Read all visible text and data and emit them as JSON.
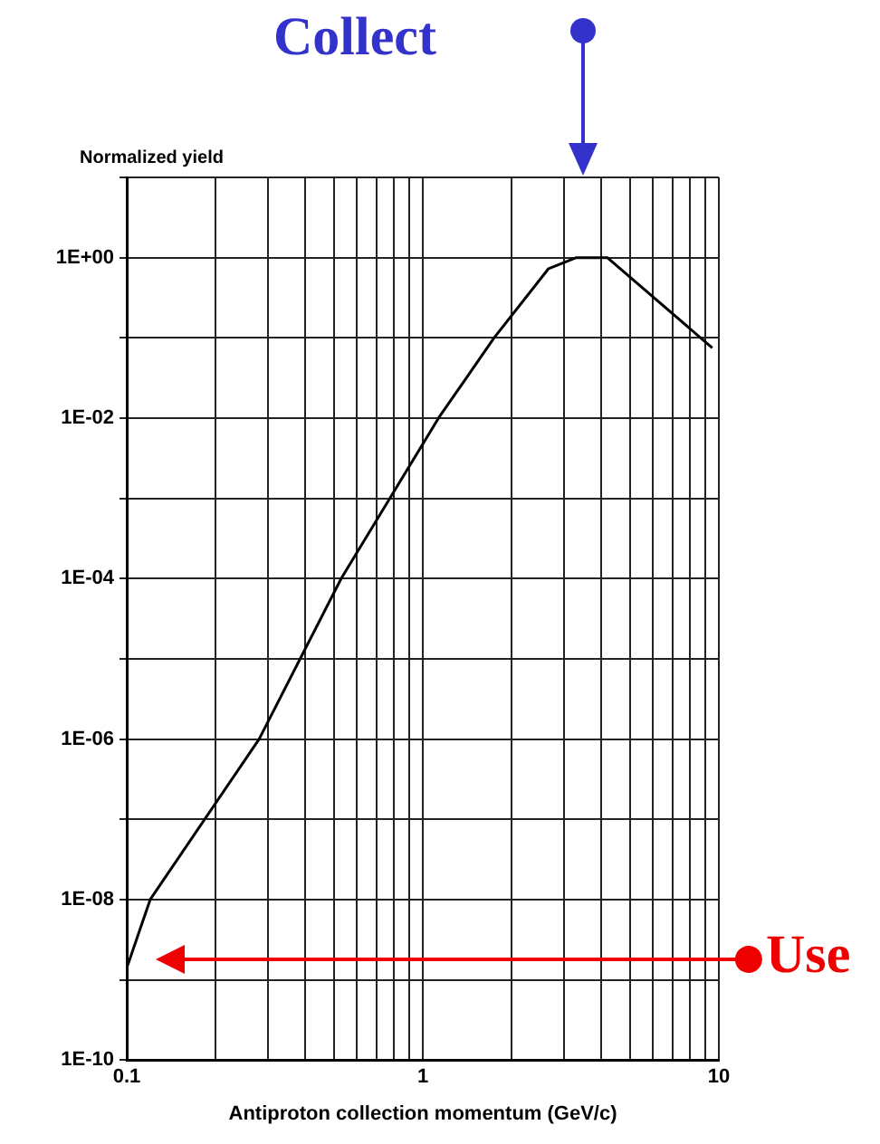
{
  "chart_data": {
    "type": "line",
    "ylabel": "Normalized yield",
    "xlabel": "Antiproton collection momentum (GeV/c)",
    "x": [
      0.1,
      0.12,
      0.28,
      0.53,
      1.13,
      1.74,
      2.66,
      3.3,
      4.2,
      9.5
    ],
    "series": [
      {
        "color": "#000000",
        "values": [
          1.4e-09,
          1e-08,
          1e-06,
          0.0001,
          0.01,
          0.1,
          0.73,
          1,
          1,
          0.075
        ]
      }
    ],
    "log": "xy",
    "grid": true,
    "legend": false,
    "marker": "none",
    "line_style": "solid",
    "xlim": [
      0.1,
      10
    ],
    "ylim": [
      1e-10,
      10
    ],
    "xticks": [
      0.1,
      {
        "value": 0.2,
        "label": null
      },
      {
        "value": 0.3,
        "label": null
      },
      {
        "value": 0.4,
        "label": null
      },
      {
        "value": 0.5,
        "label": null
      },
      {
        "value": 0.6,
        "label": null
      },
      {
        "value": 0.7,
        "label": null
      },
      {
        "value": 0.8,
        "label": null
      },
      {
        "value": 0.9,
        "label": null
      },
      1,
      {
        "value": 2,
        "label": null
      },
      {
        "value": 3,
        "label": null
      },
      {
        "value": 4,
        "label": null
      },
      {
        "value": 5,
        "label": null
      },
      {
        "value": 6,
        "label": null
      },
      {
        "value": 7,
        "label": null
      },
      {
        "value": 8,
        "label": null
      },
      {
        "value": 9,
        "label": null
      },
      10
    ],
    "yticks": [
      {
        "value": 1e-10,
        "label": "1E-10"
      },
      {
        "value": 1e-09,
        "label": null
      },
      {
        "value": 1e-08,
        "label": "1E-08"
      },
      {
        "value": 1e-07,
        "label": null
      },
      {
        "value": 1e-06,
        "label": "1E-06"
      },
      {
        "value": 1e-05,
        "label": null
      },
      {
        "value": 0.0001,
        "label": "1E-04"
      },
      {
        "value": 0.001,
        "label": null
      },
      {
        "value": 0.01,
        "label": "1E-02"
      },
      {
        "value": 0.1,
        "label": null
      },
      {
        "value": 1,
        "label": "1E+00"
      },
      {
        "value": 10,
        "label": null
      }
    ],
    "annotations": [
      "Collect",
      "Use"
    ]
  }
}
